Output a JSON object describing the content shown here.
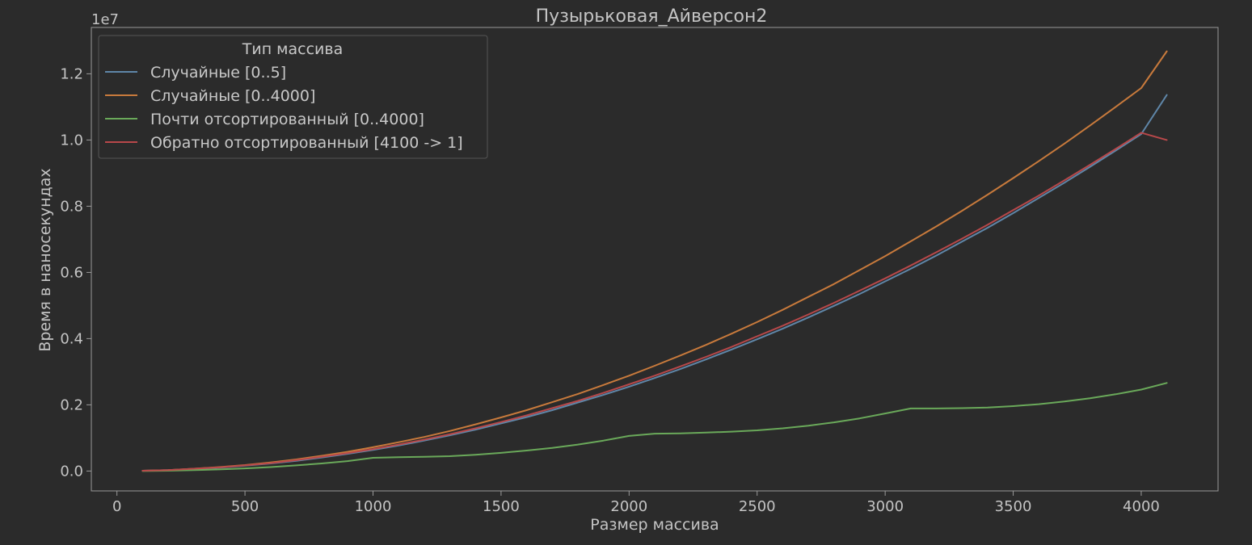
{
  "chart_data": {
    "type": "line",
    "title": "Пузырьковая_Айверсон2",
    "xlabel": "Размер массива",
    "ylabel": "Время в наносекундах",
    "y_offset_label": "1e7",
    "y_scale": 10000000,
    "xlim": [
      -100,
      4300
    ],
    "ylim": [
      -0.06,
      1.34
    ],
    "x_ticks": [
      0,
      500,
      1000,
      1500,
      2000,
      2500,
      3000,
      3500,
      4000
    ],
    "y_ticks": [
      0.0,
      0.2,
      0.4,
      0.6,
      0.8,
      1.0,
      1.2
    ],
    "grid": false,
    "legend": {
      "title": "Тип массива",
      "placement": "top-left"
    },
    "x": [
      100,
      200,
      300,
      400,
      500,
      600,
      700,
      800,
      900,
      1000,
      1100,
      1200,
      1300,
      1400,
      1500,
      1600,
      1700,
      1800,
      1900,
      2000,
      2100,
      2200,
      2300,
      2400,
      2500,
      2600,
      2700,
      2800,
      2900,
      3000,
      3100,
      3200,
      3300,
      3400,
      3500,
      3600,
      3700,
      3800,
      3900,
      4000,
      4100
    ],
    "series": [
      {
        "name": "Случайные [0..5]",
        "color": "#5f86a8",
        "values": [
          0.001,
          0.003,
          0.006,
          0.01,
          0.016,
          0.023,
          0.031,
          0.041,
          0.052,
          0.064,
          0.077,
          0.092,
          0.108,
          0.125,
          0.144,
          0.163,
          0.184,
          0.207,
          0.23,
          0.255,
          0.281,
          0.308,
          0.337,
          0.367,
          0.398,
          0.43,
          0.464,
          0.499,
          0.535,
          0.573,
          0.611,
          0.651,
          0.693,
          0.735,
          0.779,
          0.825,
          0.871,
          0.919,
          0.968,
          1.018,
          1.136
        ]
      },
      {
        "name": "Случайные [0..4000]",
        "color": "#c87a3c",
        "values": [
          0.001,
          0.003,
          0.007,
          0.012,
          0.018,
          0.026,
          0.035,
          0.046,
          0.058,
          0.072,
          0.087,
          0.103,
          0.121,
          0.141,
          0.162,
          0.184,
          0.208,
          0.233,
          0.26,
          0.288,
          0.318,
          0.349,
          0.381,
          0.415,
          0.45,
          0.487,
          0.526,
          0.565,
          0.607,
          0.649,
          0.694,
          0.739,
          0.786,
          0.835,
          0.885,
          0.936,
          0.989,
          1.044,
          1.1,
          1.157,
          1.268
        ]
      },
      {
        "name": "Почти отсортированный [0..4000]",
        "color": "#6aa95a",
        "values": [
          0.0,
          0.001,
          0.003,
          0.005,
          0.008,
          0.012,
          0.017,
          0.023,
          0.03,
          0.04,
          0.042,
          0.043,
          0.045,
          0.049,
          0.055,
          0.062,
          0.07,
          0.08,
          0.092,
          0.106,
          0.113,
          0.114,
          0.116,
          0.119,
          0.123,
          0.129,
          0.137,
          0.147,
          0.159,
          0.174,
          0.189,
          0.189,
          0.19,
          0.192,
          0.196,
          0.202,
          0.21,
          0.22,
          0.232,
          0.246,
          0.266
        ]
      },
      {
        "name": "Обратно отсортированный [4100 -> 1]",
        "color": "#b8484a",
        "values": [
          0.001,
          0.003,
          0.007,
          0.011,
          0.017,
          0.024,
          0.033,
          0.043,
          0.054,
          0.066,
          0.08,
          0.095,
          0.111,
          0.129,
          0.148,
          0.168,
          0.19,
          0.212,
          0.236,
          0.262,
          0.288,
          0.316,
          0.345,
          0.375,
          0.407,
          0.439,
          0.473,
          0.508,
          0.545,
          0.582,
          0.621,
          0.661,
          0.702,
          0.744,
          0.788,
          0.832,
          0.878,
          0.925,
          0.973,
          1.022,
          1.0
        ]
      }
    ]
  }
}
